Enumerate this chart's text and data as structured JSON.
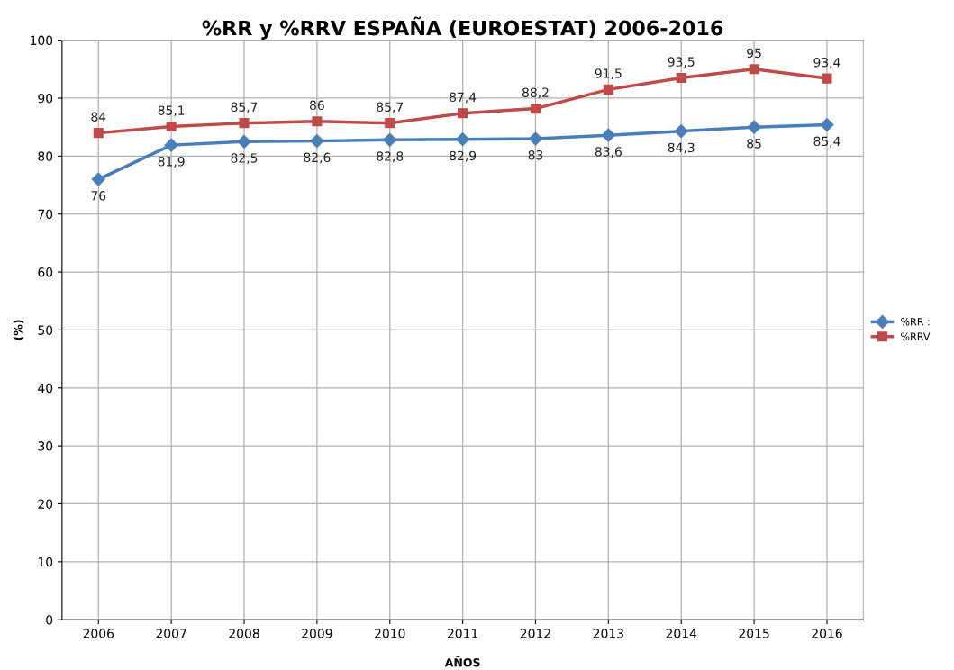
{
  "chart_data": {
    "type": "line",
    "title": "%RR y %RRV ESPAÑA (EUROESTAT) 2006-2016",
    "xlabel": "AÑOS",
    "ylabel": "(%)",
    "categories": [
      "2006",
      "2007",
      "2008",
      "2009",
      "2010",
      "2011",
      "2012",
      "2013",
      "2014",
      "2015",
      "2016"
    ],
    "series": [
      {
        "name": "%RR :",
        "color": "#4a7ebb",
        "marker": "diamond",
        "values": [
          76,
          81.9,
          82.5,
          82.6,
          82.8,
          82.9,
          83,
          83.6,
          84.3,
          85,
          85.4
        ],
        "value_labels": [
          "76",
          "81,9",
          "82,5",
          "82,6",
          "82,8",
          "82,9",
          "83",
          "83,6",
          "84,3",
          "85",
          "85,4"
        ]
      },
      {
        "name": "%RRV",
        "color": "#be4b48",
        "marker": "square",
        "values": [
          84,
          85.1,
          85.7,
          86,
          85.7,
          87.4,
          88.2,
          91.5,
          93.5,
          95,
          93.4
        ],
        "value_labels": [
          "84",
          "85,1",
          "85,7",
          "86",
          "85,7",
          "87,4",
          "88,2",
          "91,5",
          "93,5",
          "95",
          "93,4"
        ]
      }
    ],
    "ylim": [
      0,
      100
    ],
    "yticks": [
      0,
      10,
      20,
      30,
      40,
      50,
      60,
      70,
      80,
      90,
      100
    ],
    "grid": true,
    "legend": "right"
  }
}
